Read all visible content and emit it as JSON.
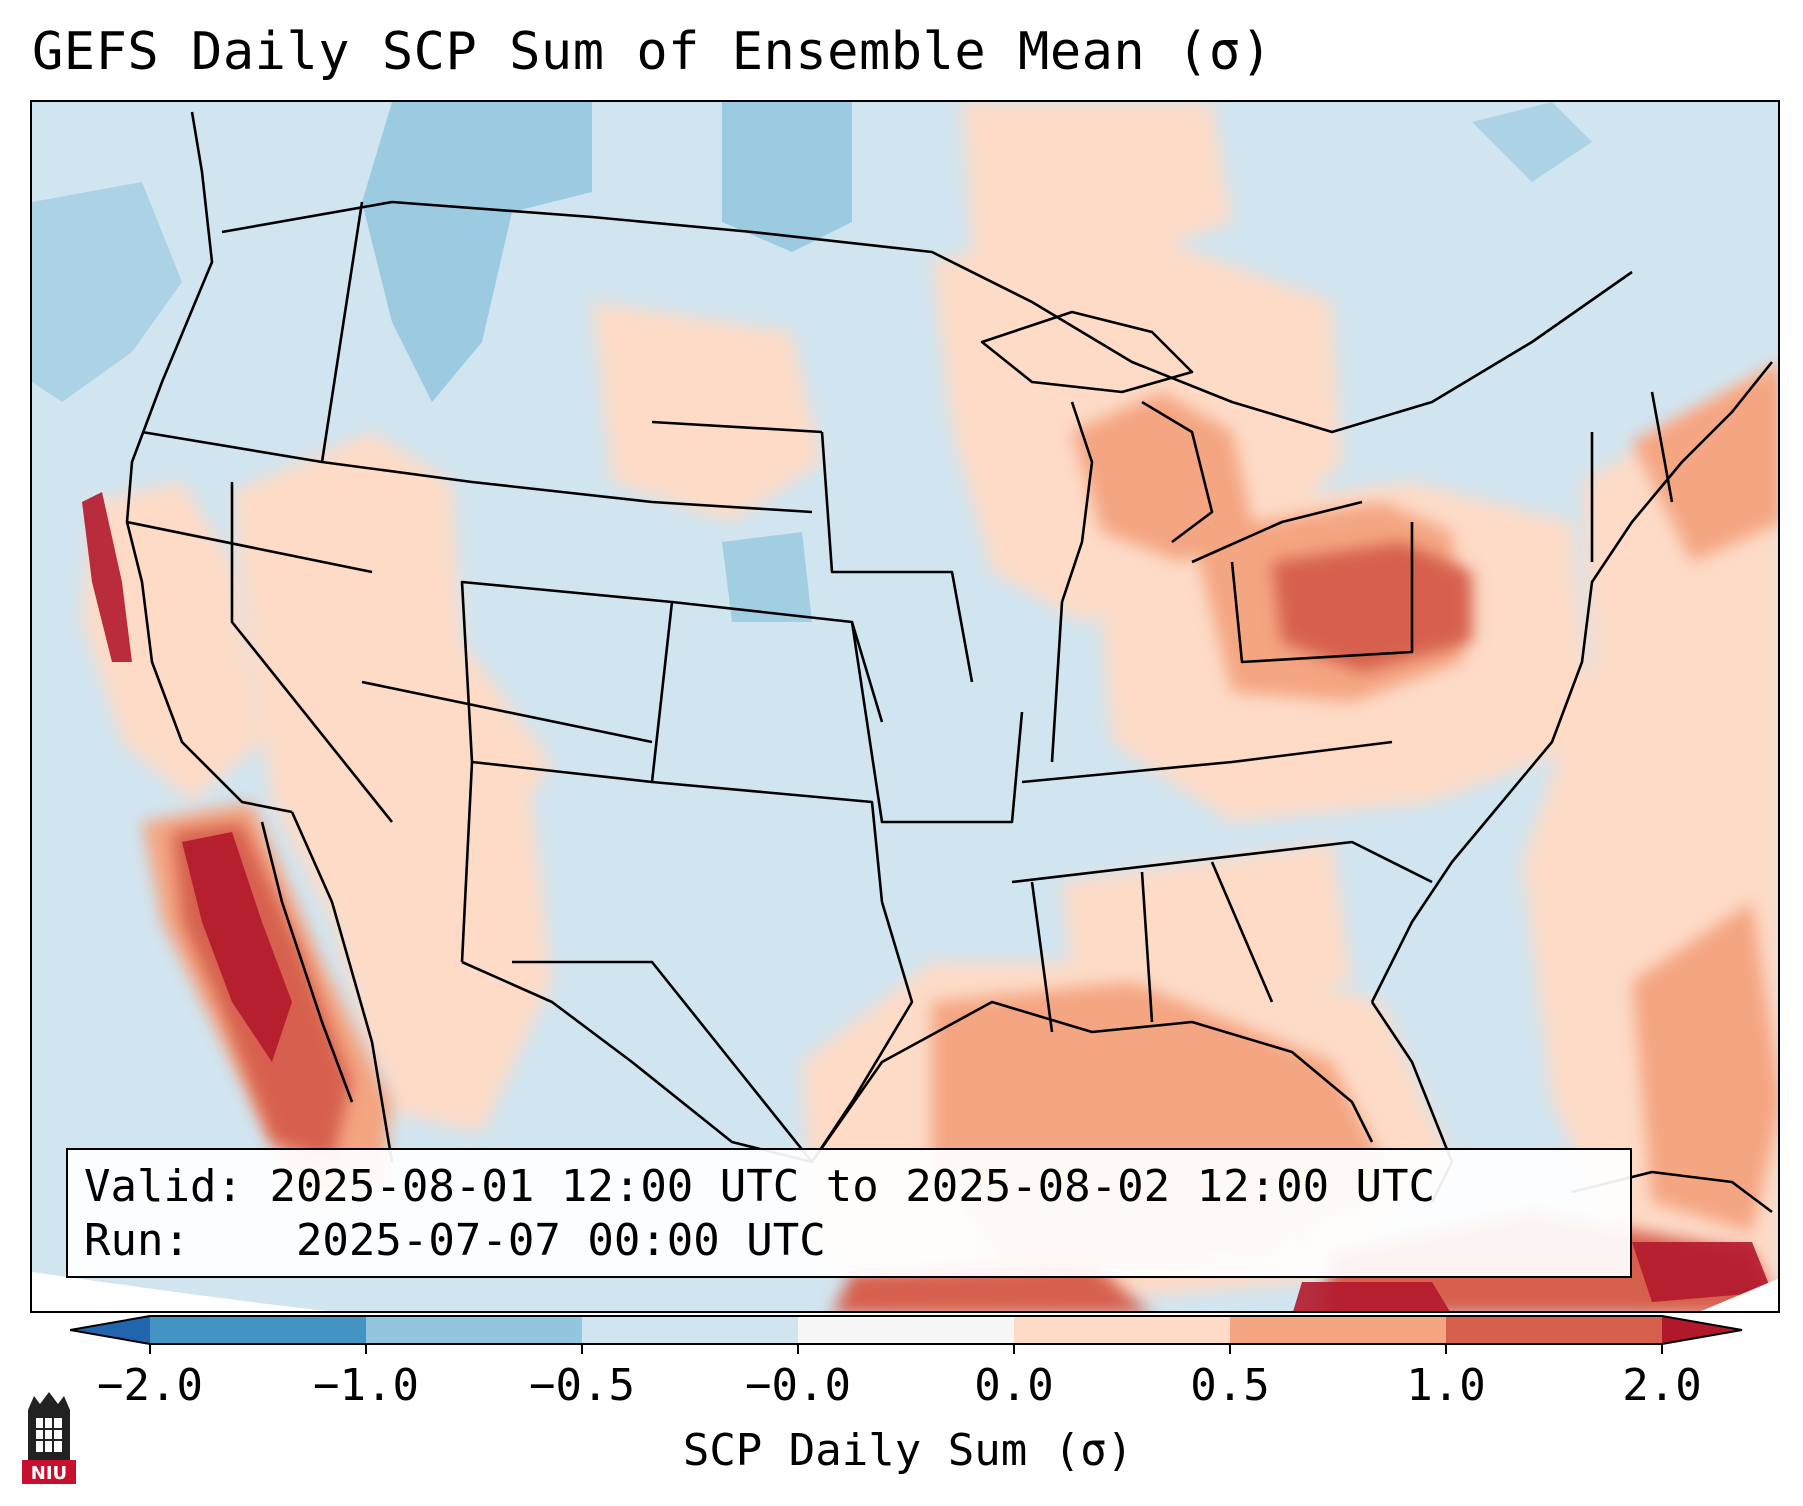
{
  "title": "GEFS Daily SCP Sum of Ensemble Mean (σ)",
  "info": {
    "valid_label": "Valid:",
    "valid_value": "2025-08-01 12:00 UTC to 2025-08-02 12:00 UTC",
    "run_label": "Run:",
    "run_value": "2025-07-07 00:00 UTC"
  },
  "colorbar": {
    "label": "SCP Daily Sum (σ)",
    "ticks": [
      "−2.0",
      "−1.0",
      "−0.5",
      "−0.0",
      "0.0",
      "0.5",
      "1.0",
      "2.0"
    ],
    "colors": {
      "below_min": "#2166ac",
      "n2_n1": "#4393c3",
      "n1_n05": "#92c5de",
      "n05_0": "#d1e5f0",
      "zero": "#f7f7f7",
      "p0_05": "#fddbc7",
      "p05_1": "#f4a582",
      "p1_2": "#d6604d",
      "above_max": "#b2182b"
    }
  },
  "map": {
    "region": "Continental United States",
    "background_category": "n05_0",
    "anomaly_regions": [
      {
        "area": "Northern Rockies / Montana",
        "category": "n1_n05"
      },
      {
        "area": "North Dakota",
        "category": "n1_n05"
      },
      {
        "area": "Pacific Northwest coast",
        "category": "n1_n05"
      },
      {
        "area": "Great Lakes / Ohio Valley",
        "category": "p0_05"
      },
      {
        "area": "Pennsylvania / Ohio",
        "category": "p1_2"
      },
      {
        "area": "Baja California / Pacific coast",
        "category": "above_max"
      },
      {
        "area": "Gulf of Mexico",
        "category": "p05_1"
      },
      {
        "area": "Caribbean / Cuba",
        "category": "above_max"
      },
      {
        "area": "Western Atlantic",
        "category": "p05_1"
      },
      {
        "area": "Desert Southwest",
        "category": "p0_05"
      }
    ]
  },
  "logo": {
    "text": "NIU",
    "color": "#c8102e"
  }
}
